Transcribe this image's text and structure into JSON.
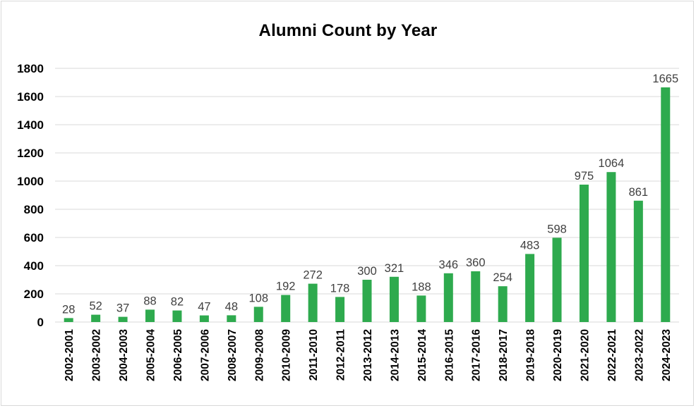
{
  "chart_data": {
    "type": "bar",
    "title": "Alumni Count by Year",
    "xlabel": "",
    "ylabel": "",
    "ylim": [
      0,
      1800
    ],
    "yticks": [
      0,
      200,
      400,
      600,
      800,
      1000,
      1200,
      1400,
      1600,
      1800
    ],
    "grid": "horizontal",
    "legend": "none",
    "bar_color": "#2eaa4e",
    "categories": [
      "2002-2001",
      "2003-2002",
      "2004-2003",
      "2005-2004",
      "2006-2005",
      "2007-2006",
      "2008-2007",
      "2009-2008",
      "2010-2009",
      "2011-2010",
      "2012-2011",
      "2013-2012",
      "2014-2013",
      "2015-2014",
      "2016-2015",
      "2017-2016",
      "2018-2017",
      "2019-2018",
      "2020-2019",
      "2021-2020",
      "2022-2021",
      "2023-2022",
      "2024-2023"
    ],
    "values": [
      28,
      52,
      37,
      88,
      82,
      47,
      48,
      108,
      192,
      272,
      178,
      300,
      321,
      188,
      346,
      360,
      254,
      483,
      598,
      975,
      1064,
      861,
      1665
    ]
  }
}
